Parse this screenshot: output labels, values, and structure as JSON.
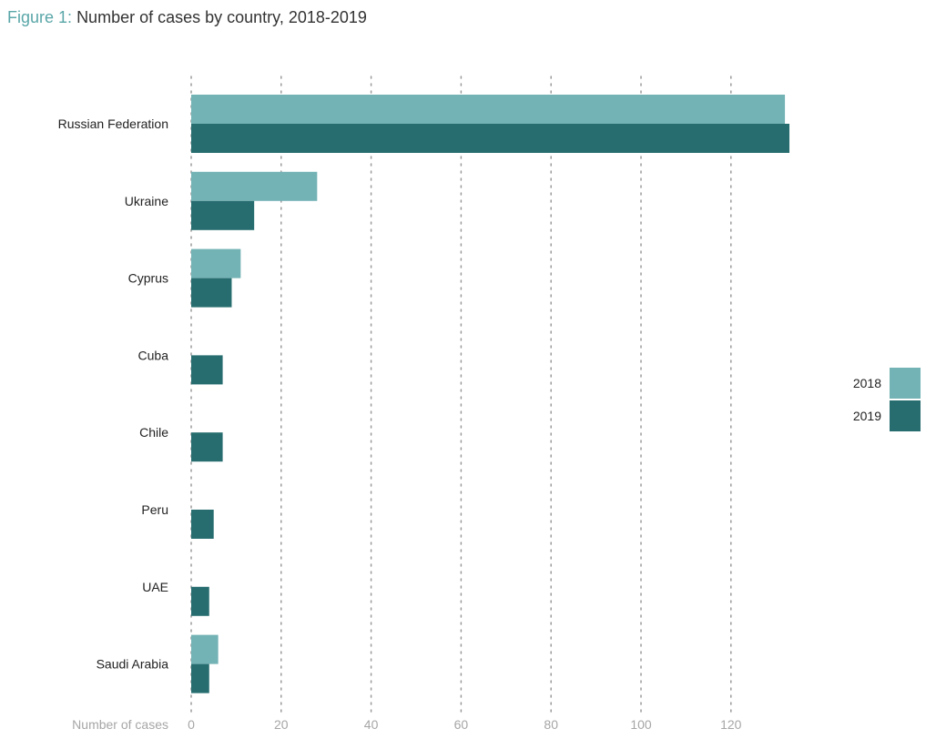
{
  "figure": {
    "label": "Figure 1:",
    "title": "Number of cases by country, 2018-2019"
  },
  "colors": {
    "series_2018": "#73b2b5",
    "series_2019": "#276d70",
    "grid": "#9a9a9a",
    "category_text": "#222222",
    "tick_text": "#a6a6a6"
  },
  "chart_data": {
    "type": "bar",
    "orientation": "horizontal",
    "title": "Number of cases by country, 2018-2019",
    "xlabel": "Number of cases",
    "ylabel": "",
    "xlim": [
      0,
      135
    ],
    "xticks": [
      0,
      20,
      40,
      60,
      80,
      100,
      120
    ],
    "grid": "vertical dotted",
    "legend_position": "right",
    "categories": [
      "Russian Federation",
      "Ukraine",
      "Cyprus",
      "Cuba",
      "Chile",
      "Peru",
      "UAE",
      "Saudi Arabia"
    ],
    "series": [
      {
        "name": "2018",
        "values": [
          132,
          28,
          11,
          null,
          null,
          null,
          null,
          6
        ]
      },
      {
        "name": "2019",
        "values": [
          133,
          14,
          9,
          7,
          7,
          5,
          4,
          4
        ]
      }
    ]
  }
}
